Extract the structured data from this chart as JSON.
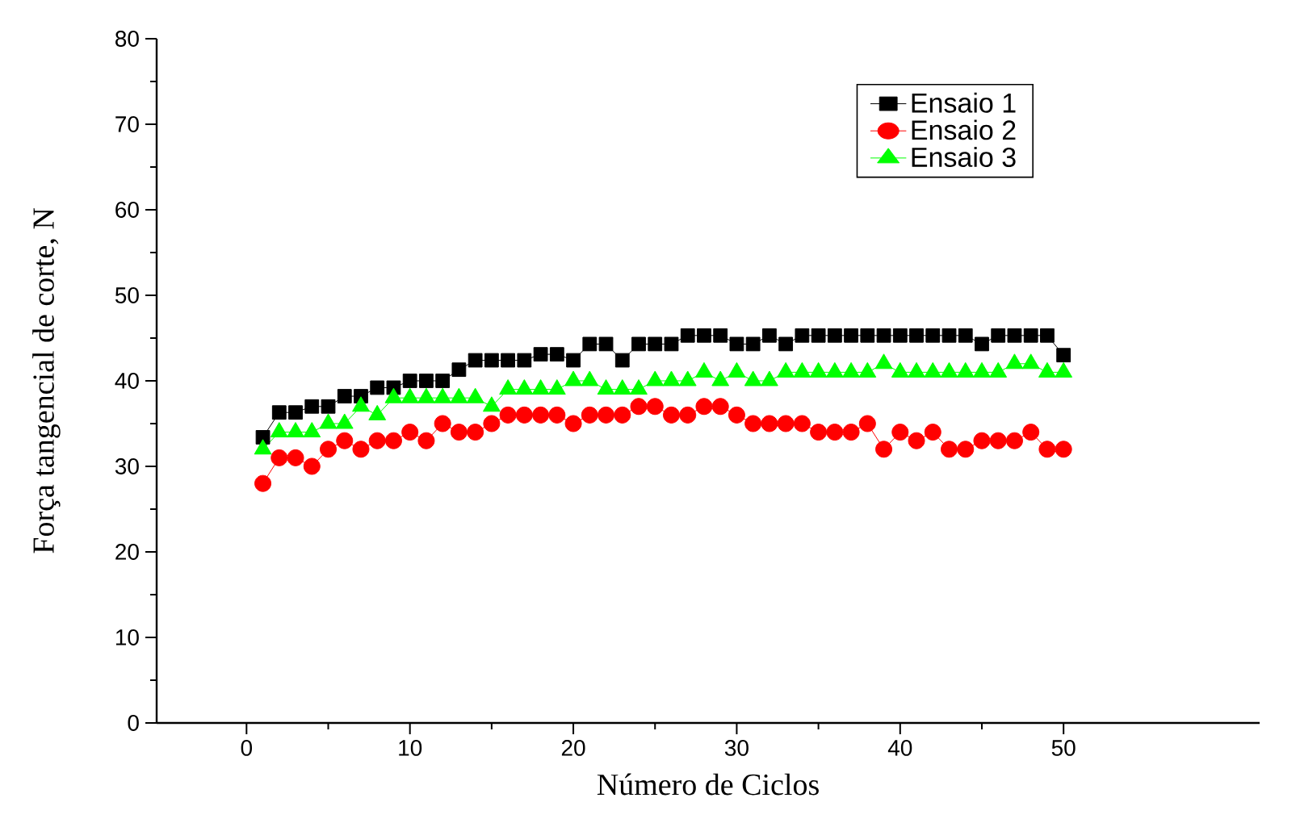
{
  "chart_data": {
    "type": "line",
    "xlabel": "Número de Ciclos",
    "ylabel": "Força tangencial de corte, N",
    "x": [
      1,
      2,
      3,
      4,
      5,
      6,
      7,
      8,
      9,
      10,
      11,
      12,
      13,
      14,
      15,
      16,
      17,
      18,
      19,
      20,
      21,
      22,
      23,
      24,
      25,
      26,
      27,
      28,
      29,
      30,
      31,
      32,
      33,
      34,
      35,
      36,
      37,
      38,
      39,
      40,
      41,
      42,
      43,
      44,
      45,
      46,
      47,
      48,
      49,
      50
    ],
    "series": [
      {
        "name": "Ensaio 1",
        "color": "#000000",
        "marker": "square",
        "values": [
          33.4,
          36.3,
          36.3,
          37,
          37,
          38.2,
          38.2,
          39.2,
          39.2,
          40,
          40,
          40,
          41.3,
          42.4,
          42.4,
          42.4,
          42.4,
          43.1,
          43.1,
          42.4,
          44.3,
          44.3,
          42.4,
          44.3,
          44.3,
          44.3,
          45.3,
          45.3,
          45.3,
          44.3,
          44.3,
          45.3,
          44.3,
          45.3,
          45.3,
          45.3,
          45.3,
          45.3,
          45.3,
          45.3,
          45.3,
          45.3,
          45.3,
          45.3,
          44.3,
          45.3,
          45.3,
          45.3,
          45.3,
          43
        ]
      },
      {
        "name": "Ensaio 2",
        "color": "#ff0000",
        "marker": "circle",
        "values": [
          28,
          31,
          31,
          30,
          32,
          33,
          32,
          33,
          33,
          34,
          33,
          35,
          34,
          34,
          35,
          36,
          36,
          36,
          36,
          35,
          36,
          36,
          36,
          37,
          37,
          36,
          36,
          37,
          37,
          36,
          35,
          35,
          35,
          35,
          34,
          34,
          34,
          35,
          32,
          34,
          33,
          34,
          32,
          32,
          33,
          33,
          33,
          34,
          32,
          32
        ]
      },
      {
        "name": "Ensaio 3",
        "color": "#00ff00",
        "marker": "triangle",
        "values": [
          32,
          34,
          34,
          34,
          35,
          35,
          37,
          36,
          38,
          38,
          38,
          38,
          38,
          38,
          37,
          39,
          39,
          39,
          39,
          40,
          40,
          39,
          39,
          39,
          40,
          40,
          40,
          41,
          40,
          41,
          40,
          40,
          41,
          41,
          41,
          41,
          41,
          41,
          42,
          41,
          41,
          41,
          41,
          41,
          41,
          41,
          42,
          42,
          41,
          41
        ]
      }
    ],
    "xlim": [
      -5.5,
      62
    ],
    "xticks": [
      0,
      10,
      20,
      30,
      40,
      50
    ],
    "ylim": [
      0,
      80
    ],
    "yticks": [
      0,
      10,
      20,
      30,
      40,
      50,
      60,
      70,
      80
    ],
    "legend": "top right",
    "grid": false,
    "line_style": "solid"
  }
}
